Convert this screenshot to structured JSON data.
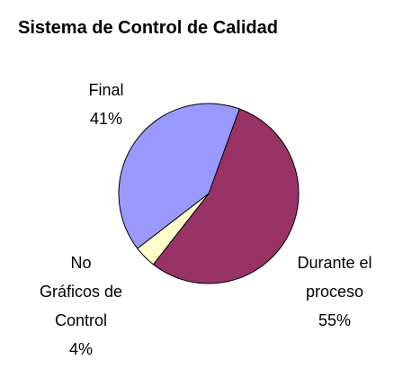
{
  "chart_data": {
    "type": "pie",
    "title": "Sistema de Control de Calidad",
    "categories": [
      "Durante el\nproceso",
      "No\nGráficos de\nControl",
      "Final"
    ],
    "values": [
      55,
      4,
      41
    ],
    "value_labels": [
      "55%",
      "4%",
      "41%"
    ],
    "colors": [
      "#993366",
      "#ffffcc",
      "#9999ff"
    ]
  }
}
